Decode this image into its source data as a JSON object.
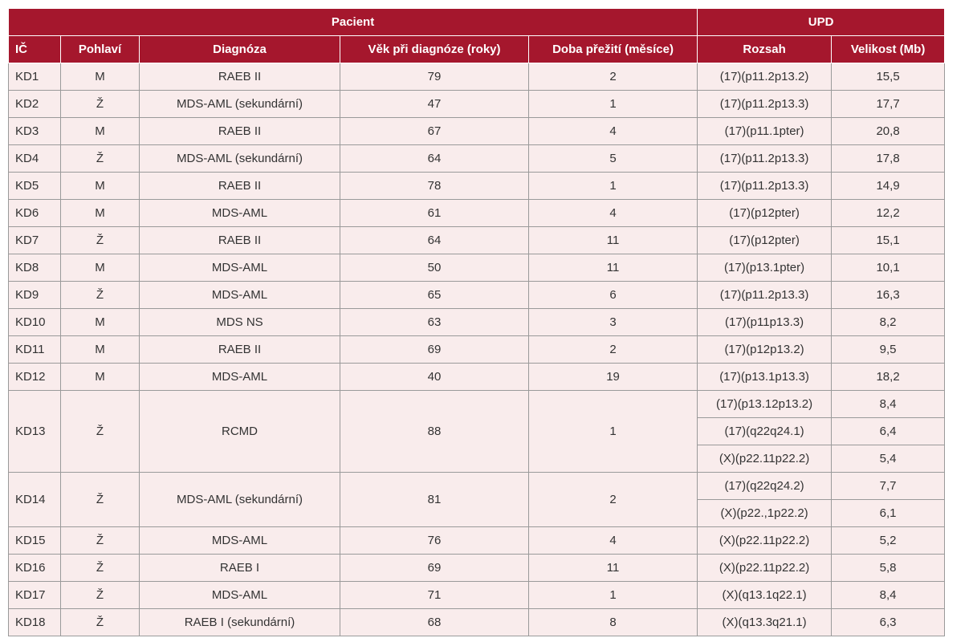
{
  "header": {
    "group_patient": "Pacient",
    "group_upd": "UPD",
    "columns": [
      "IČ",
      "Pohlaví",
      "Diagnóza",
      "Věk při diagnóze (roky)",
      "Doba přežití (měsíce)",
      "Rozsah",
      "Velikost (Mb)"
    ]
  },
  "rows": [
    {
      "id": "KD1",
      "sex": "M",
      "diagnosis": "RAEB II",
      "age": 79,
      "survival": 2,
      "upd": [
        {
          "range": "(17)(p11.2p13.2)",
          "size": "15,5"
        }
      ]
    },
    {
      "id": "KD2",
      "sex": "Ž",
      "diagnosis": "MDS-AML (sekundární)",
      "age": 47,
      "survival": 1,
      "upd": [
        {
          "range": "(17)(p11.2p13.3)",
          "size": "17,7"
        }
      ]
    },
    {
      "id": "KD3",
      "sex": "M",
      "diagnosis": "RAEB II",
      "age": 67,
      "survival": 4,
      "upd": [
        {
          "range": "(17)(p11.1pter)",
          "size": "20,8"
        }
      ]
    },
    {
      "id": "KD4",
      "sex": "Ž",
      "diagnosis": "MDS-AML (sekundární)",
      "age": 64,
      "survival": 5,
      "upd": [
        {
          "range": "(17)(p11.2p13.3)",
          "size": "17,8"
        }
      ]
    },
    {
      "id": "KD5",
      "sex": "M",
      "diagnosis": "RAEB II",
      "age": 78,
      "survival": 1,
      "upd": [
        {
          "range": "(17)(p11.2p13.3)",
          "size": "14,9"
        }
      ]
    },
    {
      "id": "KD6",
      "sex": "M",
      "diagnosis": "MDS-AML",
      "age": 61,
      "survival": 4,
      "upd": [
        {
          "range": "(17)(p12pter)",
          "size": "12,2"
        }
      ]
    },
    {
      "id": "KD7",
      "sex": "Ž",
      "diagnosis": "RAEB II",
      "age": 64,
      "survival": 11,
      "upd": [
        {
          "range": "(17)(p12pter)",
          "size": "15,1"
        }
      ]
    },
    {
      "id": "KD8",
      "sex": "M",
      "diagnosis": "MDS-AML",
      "age": 50,
      "survival": 11,
      "upd": [
        {
          "range": "(17)(p13.1pter)",
          "size": "10,1"
        }
      ]
    },
    {
      "id": "KD9",
      "sex": "Ž",
      "diagnosis": "MDS-AML",
      "age": 65,
      "survival": 6,
      "upd": [
        {
          "range": "(17)(p11.2p13.3)",
          "size": "16,3"
        }
      ]
    },
    {
      "id": "KD10",
      "sex": "M",
      "diagnosis": "MDS NS",
      "age": 63,
      "survival": 3,
      "upd": [
        {
          "range": "(17)(p11p13.3)",
          "size": "8,2"
        }
      ]
    },
    {
      "id": "KD11",
      "sex": "M",
      "diagnosis": "RAEB II",
      "age": 69,
      "survival": 2,
      "upd": [
        {
          "range": "(17)(p12p13.2)",
          "size": "9,5"
        }
      ]
    },
    {
      "id": "KD12",
      "sex": "M",
      "diagnosis": "MDS-AML",
      "age": 40,
      "survival": 19,
      "upd": [
        {
          "range": "(17)(p13.1p13.3)",
          "size": "18,2"
        }
      ]
    },
    {
      "id": "KD13",
      "sex": "Ž",
      "diagnosis": "RCMD",
      "age": 88,
      "survival": 1,
      "upd": [
        {
          "range": "(17)(p13.12p13.2)",
          "size": "8,4"
        },
        {
          "range": "(17)(q22q24.1)",
          "size": "6,4"
        },
        {
          "range": "(X)(p22.11p22.2)",
          "size": "5,4"
        }
      ]
    },
    {
      "id": "KD14",
      "sex": "Ž",
      "diagnosis": "MDS-AML (sekundární)",
      "age": 81,
      "survival": 2,
      "upd": [
        {
          "range": "(17)(q22q24.2)",
          "size": "7,7"
        },
        {
          "range": "(X)(p22.,1p22.2)",
          "size": "6,1"
        }
      ]
    },
    {
      "id": "KD15",
      "sex": "Ž",
      "diagnosis": "MDS-AML",
      "age": 76,
      "survival": 4,
      "upd": [
        {
          "range": "(X)(p22.11p22.2)",
          "size": "5,2"
        }
      ]
    },
    {
      "id": "KD16",
      "sex": "Ž",
      "diagnosis": "RAEB I",
      "age": 69,
      "survival": 11,
      "upd": [
        {
          "range": "(X)(p22.11p22.2)",
          "size": "5,8"
        }
      ]
    },
    {
      "id": "KD17",
      "sex": "Ž",
      "diagnosis": "MDS-AML",
      "age": 71,
      "survival": 1,
      "upd": [
        {
          "range": "(X)(q13.1q22.1)",
          "size": "8,4"
        }
      ]
    },
    {
      "id": "KD18",
      "sex": "Ž",
      "diagnosis": "RAEB I (sekundární)",
      "age": 68,
      "survival": 8,
      "upd": [
        {
          "range": "(X)(q13.3q21.1)",
          "size": "6,3"
        }
      ]
    }
  ]
}
